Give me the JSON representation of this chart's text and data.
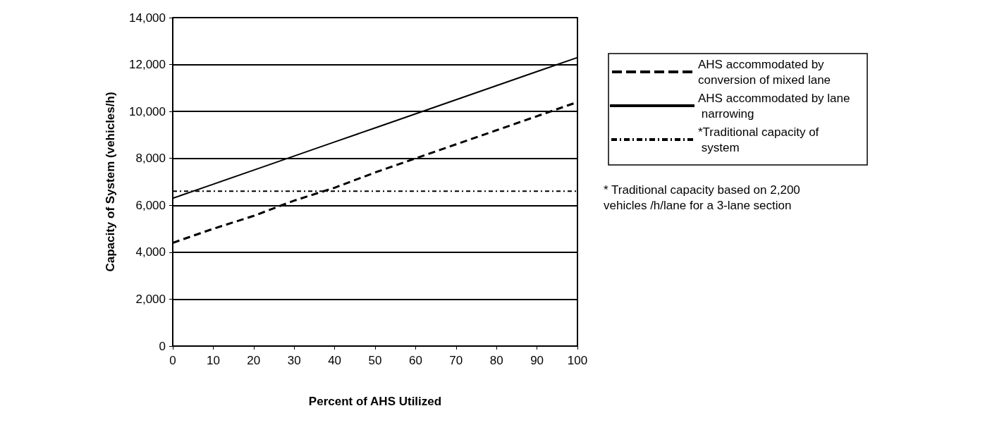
{
  "chart_data": {
    "type": "line",
    "xlabel": "Percent of AHS Utilized",
    "ylabel": "Capacity of System (vehicles/h)",
    "x": [
      0,
      10,
      20,
      30,
      40,
      50,
      60,
      70,
      80,
      90,
      100
    ],
    "series": [
      {
        "name": "AHS accommodated by conversion of mixed lane",
        "color": "#000000",
        "line_style": "dashed",
        "values": [
          4400,
          5000,
          5550,
          6200,
          6750,
          7400,
          8000,
          8600,
          9200,
          9800,
          10400
        ]
      },
      {
        "name": "AHS accommodated by lane narrowing",
        "color": "#000000",
        "line_style": "solid",
        "values": [
          6300,
          6900,
          7500,
          8100,
          8700,
          9300,
          9900,
          10500,
          11100,
          11700,
          12300
        ]
      },
      {
        "name": "*Traditional capacity of system",
        "color": "#000000",
        "line_style": "dotted",
        "values": [
          6600,
          6600,
          6600,
          6600,
          6600,
          6600,
          6600,
          6600,
          6600,
          6600,
          6600
        ]
      }
    ],
    "xlim": [
      0,
      100
    ],
    "xticks": [
      0,
      10,
      20,
      30,
      40,
      50,
      60,
      70,
      80,
      90,
      100
    ],
    "ylim": [
      0,
      14000
    ],
    "yticks": [
      {
        "value": 0,
        "label": "0"
      },
      {
        "value": 2000,
        "label": "2,000"
      },
      {
        "value": 4000,
        "label": "4,000"
      },
      {
        "value": 6000,
        "label": "6,000"
      },
      {
        "value": 8000,
        "label": "8,000"
      },
      {
        "value": 10000,
        "label": "10,000"
      },
      {
        "value": 12000,
        "label": "12,000"
      },
      {
        "value": 14000,
        "label": "14,000"
      }
    ],
    "grid": "y",
    "legend": "right",
    "marker": "none",
    "annotations": [
      "* Traditional capacity based on 2,200 vehicles /h/lane for a 3-lane section"
    ]
  }
}
